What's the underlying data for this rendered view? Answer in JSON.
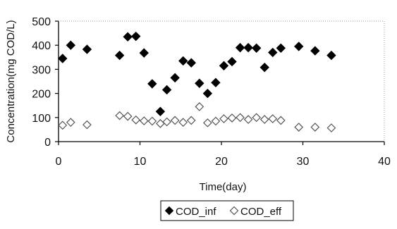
{
  "chart_data": {
    "type": "scatter",
    "xlabel": "Time(day)",
    "ylabel": "Concentration(mg COD/L)",
    "xlim": [
      0,
      40
    ],
    "ylim": [
      0,
      500
    ],
    "xticks": [
      0,
      10,
      20,
      30,
      40
    ],
    "yticks": [
      0,
      100,
      200,
      300,
      400,
      500
    ],
    "grid": false,
    "legend_position": "bottom-center",
    "series": [
      {
        "name": "COD_inf",
        "marker": "filled-diamond",
        "color": "#000000",
        "points": [
          [
            0.5,
            345
          ],
          [
            1.5,
            400
          ],
          [
            3.5,
            383
          ],
          [
            7.5,
            358
          ],
          [
            8.5,
            435
          ],
          [
            9.5,
            437
          ],
          [
            10.5,
            368
          ],
          [
            11.5,
            240
          ],
          [
            12.5,
            125
          ],
          [
            13.3,
            215
          ],
          [
            14.3,
            265
          ],
          [
            15.3,
            335
          ],
          [
            16.3,
            327
          ],
          [
            17.3,
            242
          ],
          [
            18.3,
            200
          ],
          [
            19.3,
            245
          ],
          [
            20.3,
            315
          ],
          [
            21.3,
            332
          ],
          [
            22.3,
            390
          ],
          [
            23.3,
            390
          ],
          [
            24.3,
            388
          ],
          [
            25.3,
            308
          ],
          [
            26.3,
            370
          ],
          [
            27.3,
            388
          ],
          [
            29.5,
            395
          ],
          [
            31.5,
            377
          ],
          [
            33.5,
            358
          ]
        ]
      },
      {
        "name": "COD_eff",
        "marker": "open-diamond",
        "color": "#000000",
        "points": [
          [
            0.5,
            68
          ],
          [
            1.5,
            80
          ],
          [
            3.5,
            70
          ],
          [
            7.5,
            108
          ],
          [
            8.5,
            105
          ],
          [
            9.5,
            90
          ],
          [
            10.5,
            86
          ],
          [
            11.5,
            85
          ],
          [
            12.5,
            75
          ],
          [
            13.3,
            82
          ],
          [
            14.3,
            88
          ],
          [
            15.3,
            80
          ],
          [
            16.3,
            88
          ],
          [
            17.3,
            145
          ],
          [
            18.3,
            78
          ],
          [
            19.3,
            85
          ],
          [
            20.3,
            95
          ],
          [
            21.3,
            98
          ],
          [
            22.3,
            100
          ],
          [
            23.3,
            92
          ],
          [
            24.3,
            100
          ],
          [
            25.3,
            92
          ],
          [
            26.3,
            95
          ],
          [
            27.3,
            88
          ],
          [
            29.5,
            60
          ],
          [
            31.5,
            60
          ],
          [
            33.5,
            57
          ]
        ]
      }
    ],
    "legend": [
      {
        "label": "COD_inf",
        "marker": "filled-diamond"
      },
      {
        "label": "COD_eff",
        "marker": "open-diamond"
      }
    ]
  }
}
